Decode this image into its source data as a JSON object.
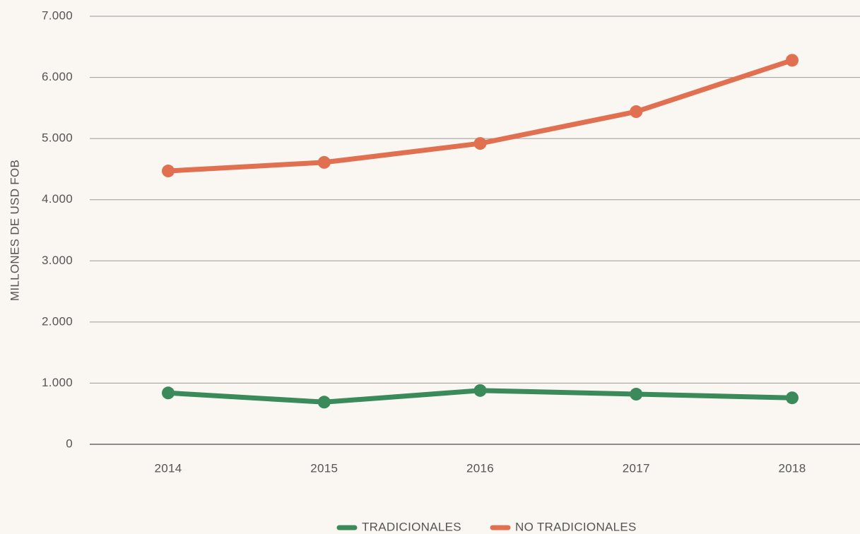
{
  "chart_data": {
    "type": "line",
    "y_axis_label": "MILLONES DE USD FOB",
    "categories": [
      "2014",
      "2015",
      "2016",
      "2017",
      "2018"
    ],
    "series": [
      {
        "name": "TRADICIONALES",
        "color": "#3a8a5a",
        "values": [
          840,
          690,
          880,
          820,
          760
        ]
      },
      {
        "name": "NO TRADICIONALES",
        "color": "#e07050",
        "values": [
          4470,
          4610,
          4920,
          5440,
          6280
        ]
      }
    ],
    "ylim": [
      0,
      7000
    ],
    "yticks": [
      0,
      {
        "value": 1000,
        "label": "1.000"
      },
      {
        "value": 2000,
        "label": "2.000"
      },
      {
        "value": 3000,
        "label": "3.000"
      },
      {
        "value": 4000,
        "label": "4.000"
      },
      {
        "value": 5000,
        "label": "5.000"
      },
      {
        "value": 6000,
        "label": "6.000"
      },
      {
        "value": 7000,
        "label": "7.000"
      }
    ],
    "grid": true,
    "legend": "bottom"
  }
}
